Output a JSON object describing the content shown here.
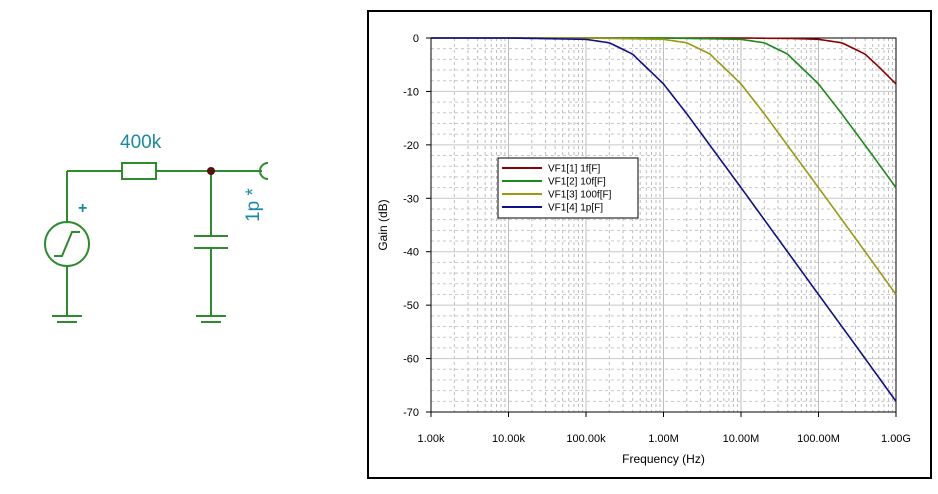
{
  "schematic": {
    "resistor_label": "400k",
    "capacitor_label": "1p *",
    "source_polarity": "+",
    "wire_color": "#2e8b2e",
    "node_color": "#5a1010",
    "label_color": "#1a8aa0"
  },
  "chart_data": {
    "type": "line",
    "title": "",
    "xlabel": "Frequency (Hz)",
    "ylabel": "Gain (dB)",
    "xscale": "log",
    "xlim": [
      1000,
      1000000000
    ],
    "ylim": [
      -70,
      0
    ],
    "x_ticks": [
      {
        "value": 1000,
        "label": "1.00k"
      },
      {
        "value": 10000,
        "label": "10.00k"
      },
      {
        "value": 100000,
        "label": "100.00k"
      },
      {
        "value": 1000000,
        "label": "1.00M"
      },
      {
        "value": 10000000,
        "label": "10.00M"
      },
      {
        "value": 100000000,
        "label": "100.00M"
      },
      {
        "value": 1000000000,
        "label": "1.00G"
      }
    ],
    "y_ticks": [
      {
        "value": 0,
        "label": "0"
      },
      {
        "value": -10,
        "label": "-10"
      },
      {
        "value": -20,
        "label": "-20"
      },
      {
        "value": -30,
        "label": "-30"
      },
      {
        "value": -40,
        "label": "-40"
      },
      {
        "value": -50,
        "label": "-50"
      },
      {
        "value": -60,
        "label": "-60"
      },
      {
        "value": -70,
        "label": "-70"
      }
    ],
    "grid": true,
    "legend_position": "center-left",
    "series": [
      {
        "name": "VF1[1]  1f[F]",
        "color": "#8b0000",
        "x": [
          1000,
          10000,
          100000,
          1000000,
          10000000,
          50000000,
          100000000,
          200000000,
          398000000,
          600000000,
          1000000000
        ],
        "y": [
          0,
          0,
          0,
          0,
          0,
          -0.1,
          -0.25,
          -0.9,
          -3.0,
          -5.4,
          -8.6
        ]
      },
      {
        "name": "VF1[2]  10f[F]",
        "color": "#1a8a1a",
        "x": [
          1000,
          10000,
          100000,
          1000000,
          10000000,
          20000000,
          39800000,
          100000000,
          200000000,
          500000000,
          1000000000
        ],
        "y": [
          0,
          0,
          0,
          0,
          -0.25,
          -0.9,
          -3.0,
          -8.6,
          -14.2,
          -22.0,
          -28.0
        ]
      },
      {
        "name": "VF1[3]  100f[F]",
        "color": "#9a9a10",
        "x": [
          1000,
          10000,
          100000,
          1000000,
          2000000,
          3980000,
          10000000,
          20000000,
          100000000,
          300000000,
          1000000000
        ],
        "y": [
          0,
          0,
          0,
          -0.25,
          -0.9,
          -3.0,
          -8.6,
          -14.2,
          -28.0,
          -37.5,
          -48.0
        ]
      },
      {
        "name": "VF1[4]  1p[F]",
        "color": "#10108a",
        "x": [
          1000,
          10000,
          100000,
          200000,
          398000,
          1000000,
          2000000,
          10000000,
          100000000,
          300000000,
          1000000000
        ],
        "y": [
          0,
          0,
          -0.25,
          -0.9,
          -3.0,
          -8.6,
          -14.2,
          -28.0,
          -48.0,
          -57.5,
          -68.0
        ]
      }
    ]
  }
}
